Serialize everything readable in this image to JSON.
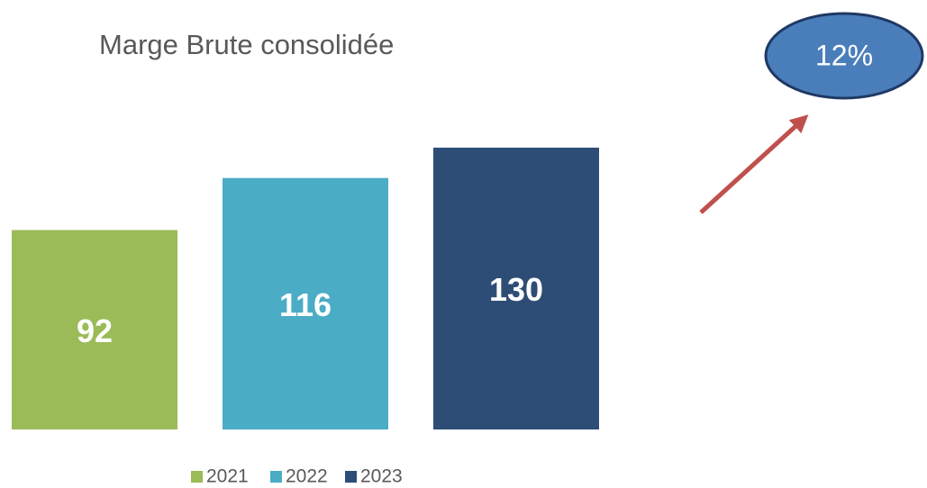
{
  "chart_data": {
    "type": "bar",
    "title": "Marge Brute consolidée",
    "series": [
      {
        "name": "2021",
        "color": "#9bbb59",
        "values": [
          92
        ]
      },
      {
        "name": "2022",
        "color": "#4bacc6",
        "values": [
          116
        ]
      },
      {
        "name": "2023",
        "color": "#2e4d76",
        "values": [
          130
        ]
      }
    ],
    "annotation": "12%"
  }
}
